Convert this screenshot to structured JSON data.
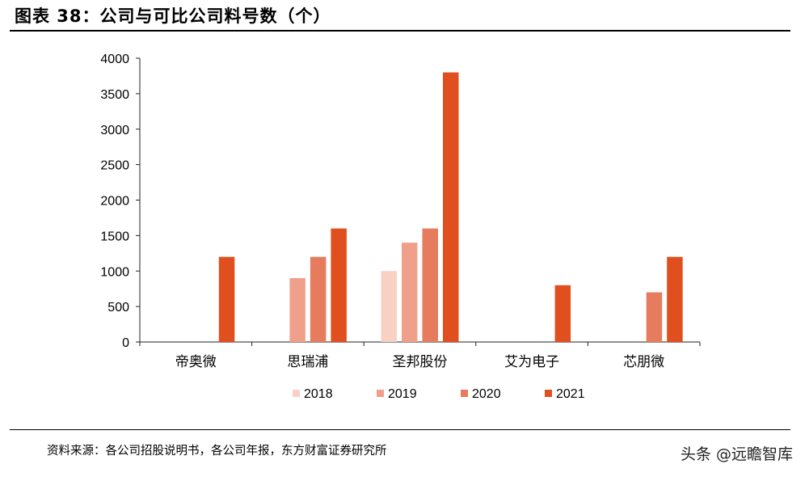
{
  "title": "图表 38：公司与可比公司料号数（个）",
  "source": "资料来源：各公司招股说明书，各公司年报，东方财富证券研究所",
  "watermark": "头条 @远瞻智库",
  "chart_data": {
    "type": "bar",
    "categories": [
      "帝奥微",
      "思瑞浦",
      "圣邦股份",
      "艾为电子",
      "芯朋微"
    ],
    "series": [
      {
        "name": "2018",
        "color": "#f8d0c4",
        "values": [
          null,
          null,
          1000,
          null,
          null
        ]
      },
      {
        "name": "2019",
        "color": "#f0a08a",
        "values": [
          null,
          900,
          1400,
          null,
          null
        ]
      },
      {
        "name": "2020",
        "color": "#e67b5e",
        "values": [
          null,
          1200,
          1600,
          null,
          700
        ]
      },
      {
        "name": "2021",
        "color": "#e0501f",
        "values": [
          1200,
          1600,
          3800,
          800,
          1200
        ]
      }
    ],
    "ylim": [
      0,
      4000
    ],
    "yticks": [
      0,
      500,
      1000,
      1500,
      2000,
      2500,
      3000,
      3500,
      4000
    ],
    "legend_position": "bottom",
    "grid": false
  }
}
